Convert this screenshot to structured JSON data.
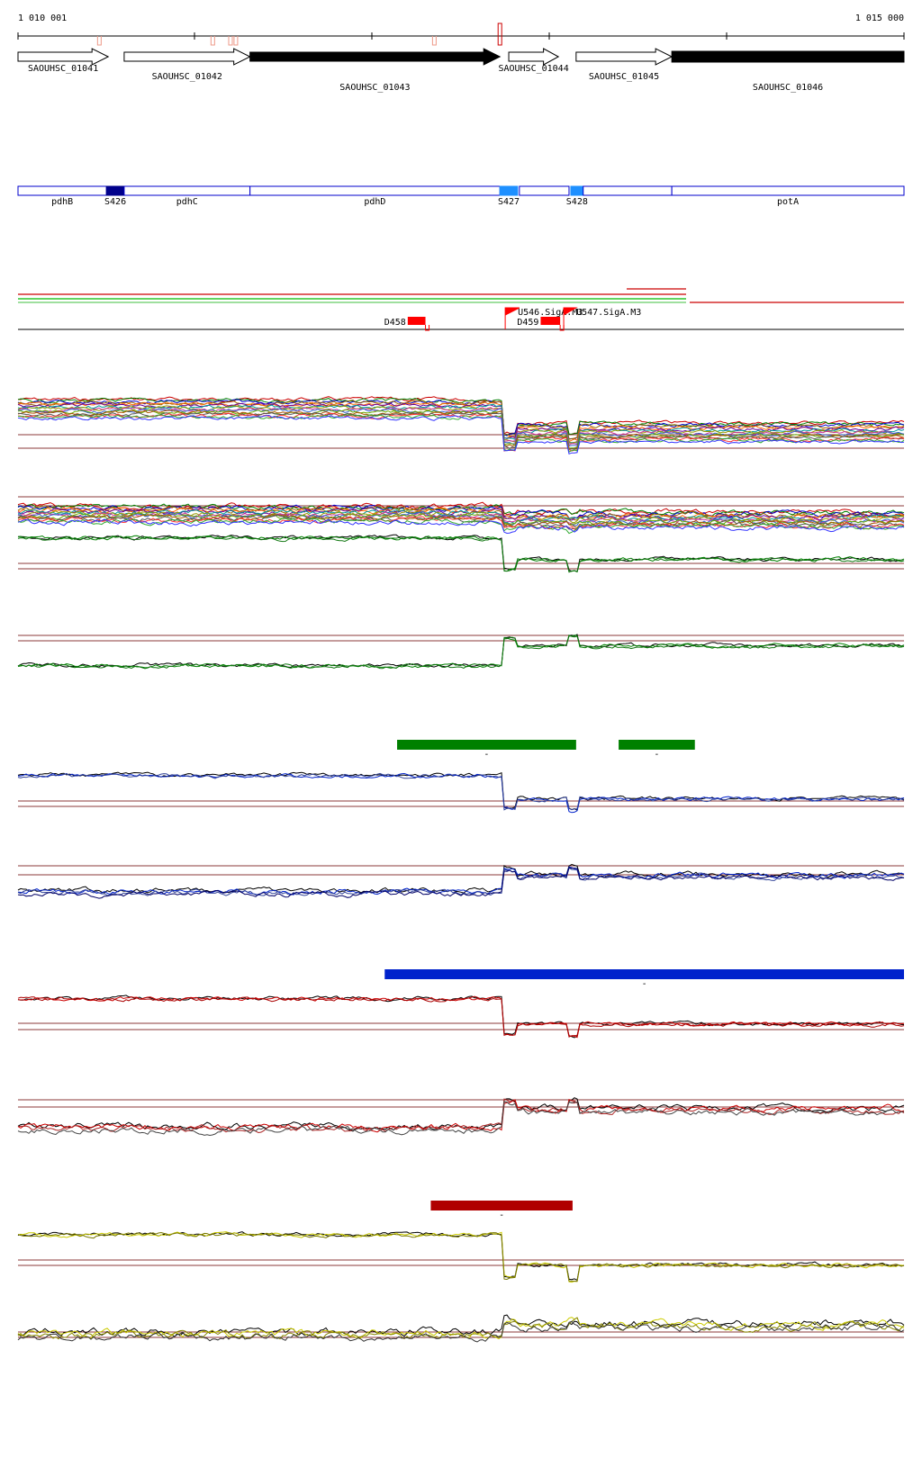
{
  "ruler": {
    "start_label": "1 010 001",
    "end_label": "1 015 000",
    "start": 1010001,
    "end": 1015000
  },
  "genes": [
    {
      "id": "SAOUHSC_01041",
      "start": 1010001,
      "end": 1010510,
      "strand": "+",
      "filled": false,
      "label_row": 1
    },
    {
      "id": "SAOUHSC_01042",
      "start": 1010600,
      "end": 1011310,
      "strand": "+",
      "filled": false,
      "label_row": 2
    },
    {
      "id": "SAOUHSC_01043",
      "start": 1011310,
      "end": 1012720,
      "strand": "+",
      "filled": true,
      "label_row": 3
    },
    {
      "id": "SAOUHSC_01044",
      "start": 1012770,
      "end": 1013050,
      "strand": "+",
      "filled": false,
      "label_row": 1
    },
    {
      "id": "SAOUHSC_01045",
      "start": 1013150,
      "end": 1013690,
      "strand": "+",
      "filled": false,
      "label_row": 2
    },
    {
      "id": "SAOUHSC_01046",
      "start": 1013690,
      "end": 1015000,
      "strand": "+",
      "filled": true,
      "label_row": 3
    }
  ],
  "gene_ticks": [
    1010460,
    1011100,
    1011200,
    1011230,
    1012350,
    1012720
  ],
  "features": [
    {
      "name": "pdhB",
      "start": 1010001,
      "end": 1010500,
      "type": "box"
    },
    {
      "name": "S426",
      "start": 1010500,
      "end": 1010600,
      "type": "site",
      "color": "#00008b"
    },
    {
      "name": "pdhC",
      "start": 1010600,
      "end": 1011310,
      "type": "box"
    },
    {
      "name": "pdhD",
      "start": 1011310,
      "end": 1012720,
      "type": "box"
    },
    {
      "name": "S427",
      "start": 1012720,
      "end": 1012820,
      "type": "site",
      "color": "#1e90ff"
    },
    {
      "name": "",
      "start": 1012830,
      "end": 1013110,
      "type": "box"
    },
    {
      "name": "S428",
      "start": 1013120,
      "end": 1013190,
      "type": "site",
      "color": "#1e90ff"
    },
    {
      "name": "",
      "start": 1013190,
      "end": 1013690,
      "type": "box"
    },
    {
      "name": "potA",
      "start": 1013690,
      "end": 1015000,
      "type": "box"
    }
  ],
  "transcription": {
    "elements": [
      {
        "name": "D458",
        "start": 1012200,
        "end": 1012300
      },
      {
        "name": "U546.SigA.M3",
        "start": 1012750,
        "end": 1012830
      },
      {
        "name": "D459",
        "start": 1012950,
        "end": 1013060
      },
      {
        "name": "U547.SigA.M3",
        "start": 1013080,
        "end": 1013150
      }
    ]
  },
  "segments": [
    {
      "color": "#008000",
      "start": 1012140,
      "end": 1013150,
      "label": "-"
    },
    {
      "color": "#008000",
      "start": 1013390,
      "end": 1013820,
      "label": "-"
    },
    {
      "color": "#0022cc",
      "start": 1012070,
      "end": 1015000,
      "label": "-"
    },
    {
      "color": "#b00000",
      "start": 1012330,
      "end": 1013130,
      "label": "-"
    }
  ],
  "colors": {
    "green": "#008000",
    "blue": "#0022cc",
    "red": "#cc0000",
    "yellow": "#cccc00",
    "threshold": "#8b3a3a",
    "feature_box": "#0000cc"
  }
}
